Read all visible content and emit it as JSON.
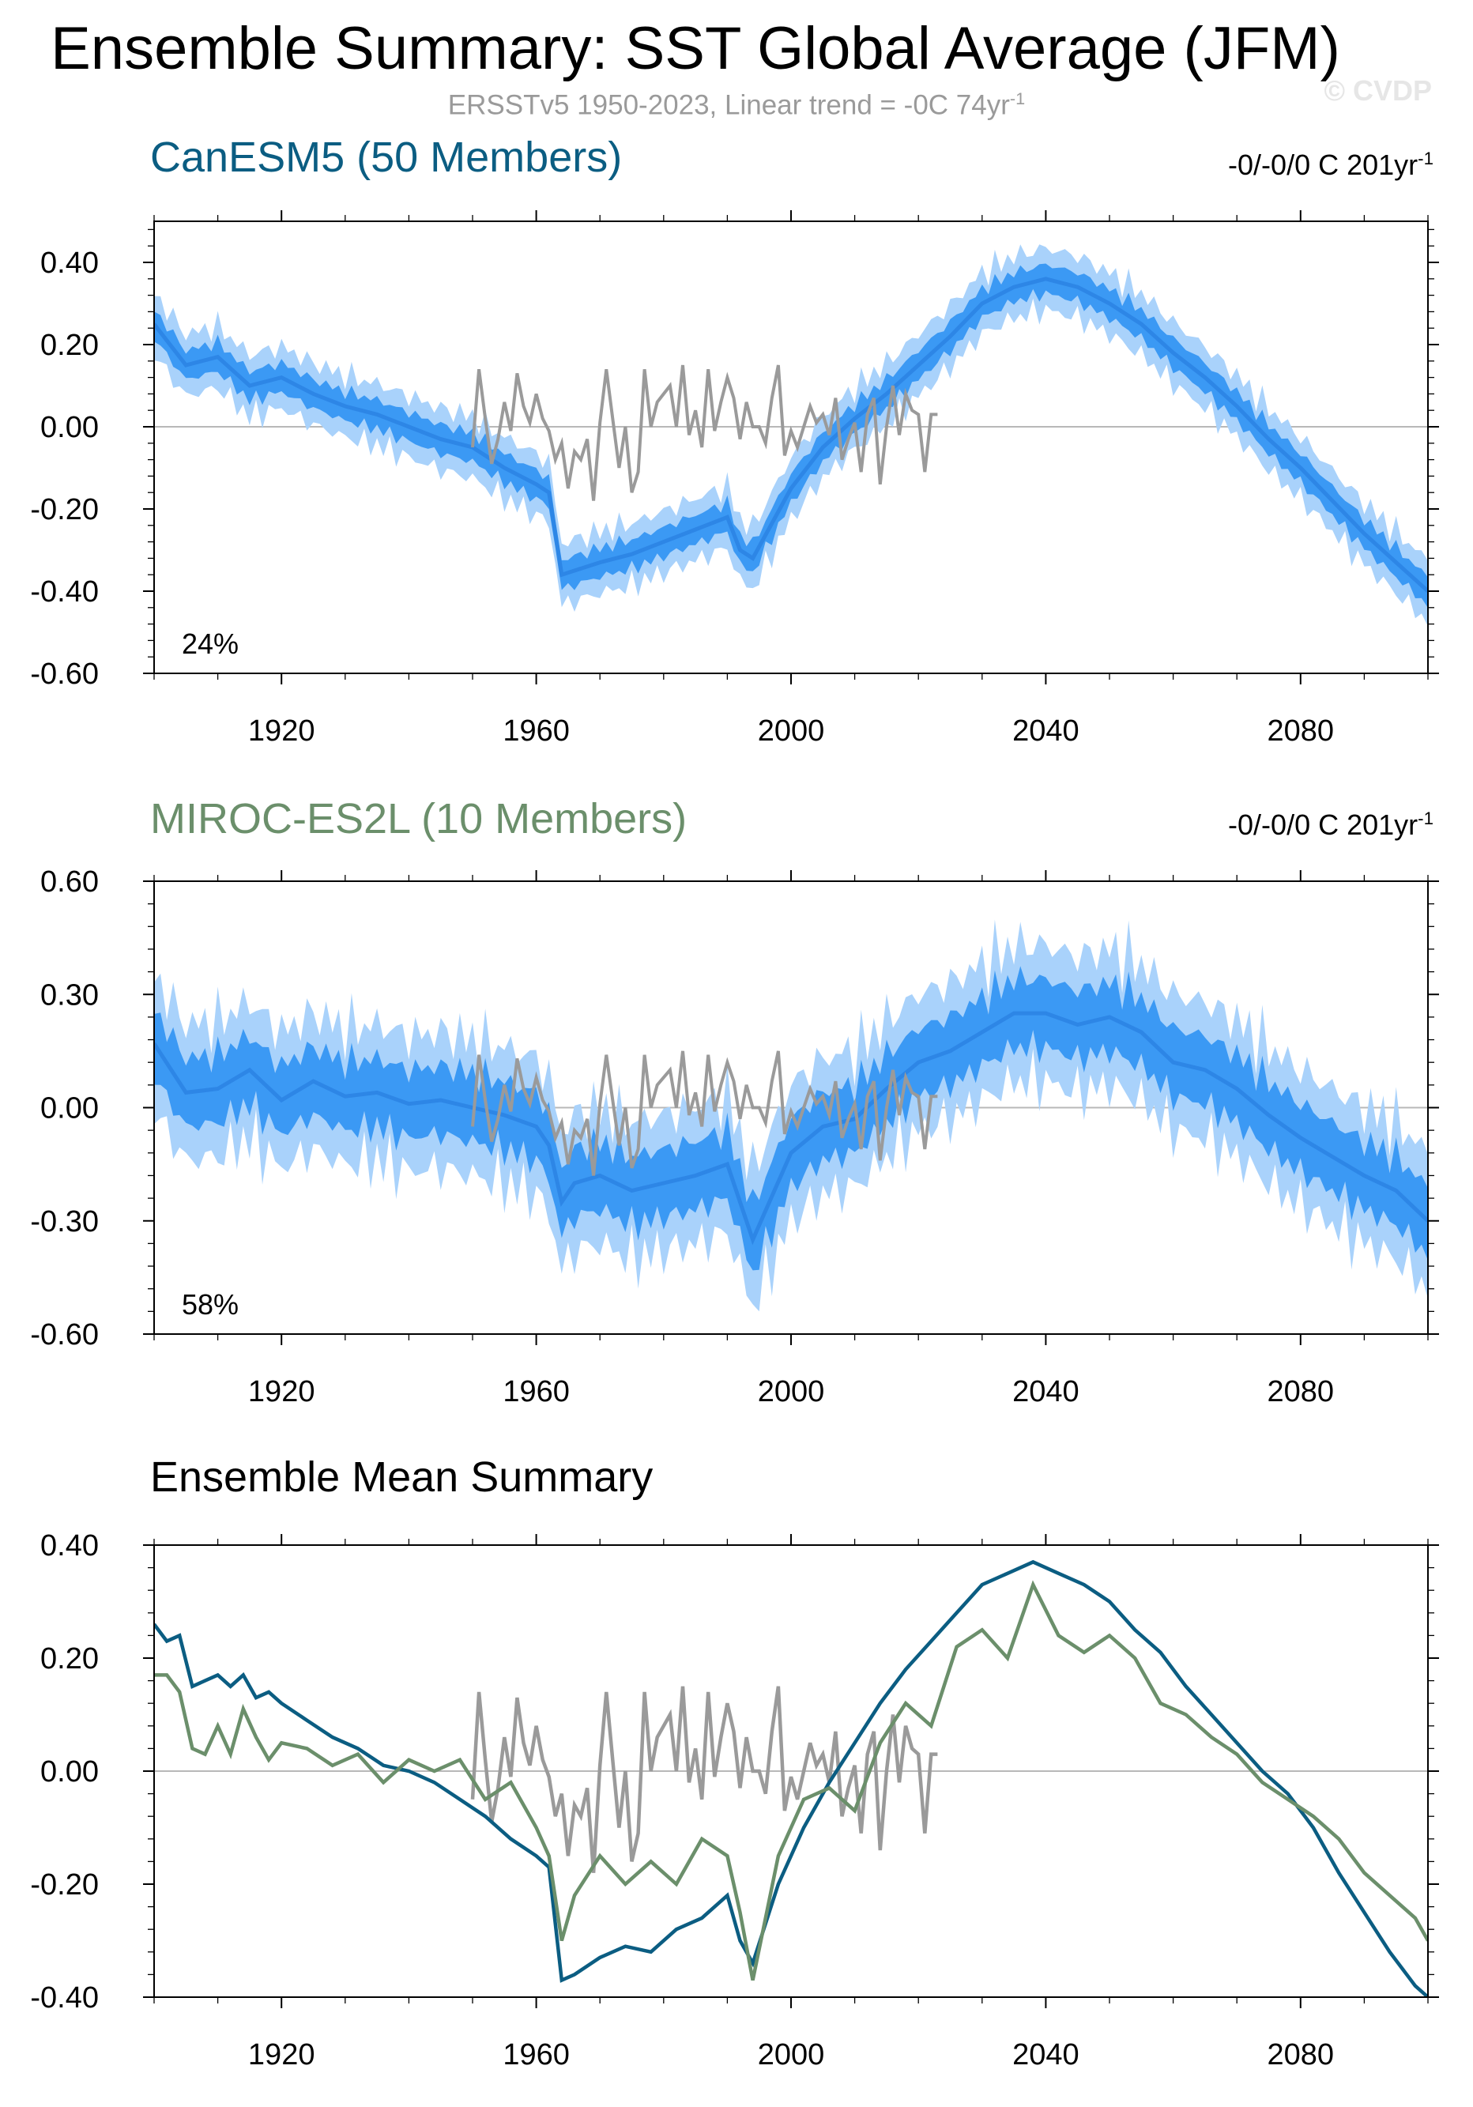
{
  "title": "Ensemble Summary: SST Global Average (JFM)",
  "subtitle_text": "ERSSTv5 1950-2023, Linear trend = -0C 74yr",
  "subtitle_exp": "-1",
  "copyright": "© CVDP",
  "colors": {
    "canesm": "#0b5d82",
    "miroc": "#6b8f6b",
    "obs": "#9a9a9a",
    "band_inner": "#3b99f4",
    "band_outer": "#a9d2fb",
    "ens_mean_line": "#2d86e6"
  },
  "chart_data": [
    {
      "type": "area",
      "title": "CanESM5 (50 Members)",
      "trend_text": "-0/-0/0 C 201yr",
      "trend_exp": "-1",
      "percent_label": "24%",
      "xlim": [
        1900,
        2100
      ],
      "ylim": [
        -0.6,
        0.5
      ],
      "yticks": [
        0.4,
        0.2,
        0.0,
        -0.2,
        -0.4,
        -0.6
      ],
      "ytick_labels": [
        "0.40",
        "0.20",
        "0.00",
        "-0.20",
        "-0.40",
        "-0.60"
      ],
      "xticks": [
        1920,
        1960,
        2000,
        2040,
        2080
      ],
      "inner_halfwidth": 0.035,
      "outer_halfwidth": 0.075,
      "ensemble_mean": {
        "x": [
          1900,
          1905,
          1910,
          1915,
          1920,
          1925,
          1930,
          1935,
          1940,
          1945,
          1950,
          1955,
          1960,
          1962,
          1964,
          1966,
          1970,
          1975,
          1980,
          1985,
          1990,
          1992,
          1994,
          2000,
          2005,
          2010,
          2015,
          2020,
          2025,
          2030,
          2035,
          2040,
          2045,
          2050,
          2055,
          2060,
          2065,
          2070,
          2075,
          2080,
          2085,
          2090,
          2095,
          2100
        ],
        "y": [
          0.25,
          0.15,
          0.17,
          0.1,
          0.12,
          0.08,
          0.05,
          0.03,
          0.0,
          -0.03,
          -0.05,
          -0.1,
          -0.14,
          -0.16,
          -0.36,
          -0.35,
          -0.33,
          -0.31,
          -0.28,
          -0.25,
          -0.22,
          -0.3,
          -0.32,
          -0.15,
          -0.05,
          0.02,
          0.08,
          0.15,
          0.22,
          0.3,
          0.34,
          0.36,
          0.34,
          0.3,
          0.25,
          0.18,
          0.12,
          0.05,
          -0.03,
          -0.1,
          -0.18,
          -0.26,
          -0.33,
          -0.4
        ]
      },
      "observations": {
        "name": "ERSSTv5",
        "x": [
          1950,
          1951,
          1952,
          1953,
          1954,
          1955,
          1956,
          1957,
          1958,
          1959,
          1960,
          1961,
          1962,
          1963,
          1964,
          1965,
          1966,
          1967,
          1968,
          1969,
          1970,
          1971,
          1972,
          1973,
          1974,
          1975,
          1976,
          1977,
          1978,
          1979,
          1980,
          1981,
          1982,
          1983,
          1984,
          1985,
          1986,
          1987,
          1988,
          1989,
          1990,
          1991,
          1992,
          1993,
          1994,
          1995,
          1996,
          1997,
          1998,
          1999,
          2000,
          2001,
          2002,
          2003,
          2004,
          2005,
          2006,
          2007,
          2008,
          2009,
          2010,
          2011,
          2012,
          2013,
          2014,
          2015,
          2016,
          2017,
          2018,
          2019,
          2020,
          2021,
          2022,
          2023
        ],
        "y": [
          -0.05,
          0.14,
          0.02,
          -0.09,
          -0.03,
          0.06,
          -0.01,
          0.13,
          0.05,
          0.01,
          0.08,
          0.02,
          -0.01,
          -0.08,
          -0.04,
          -0.15,
          -0.06,
          -0.08,
          -0.03,
          -0.18,
          0.01,
          0.14,
          0.02,
          -0.1,
          0.0,
          -0.16,
          -0.11,
          0.14,
          0.0,
          0.06,
          0.08,
          0.1,
          0.0,
          0.15,
          -0.02,
          0.04,
          -0.05,
          0.14,
          -0.01,
          0.06,
          0.12,
          0.07,
          -0.03,
          0.06,
          0.0,
          0.0,
          -0.04,
          0.07,
          0.15,
          -0.07,
          -0.01,
          -0.05,
          0.0,
          0.05,
          0.01,
          0.03,
          -0.02,
          0.07,
          -0.08,
          -0.03,
          0.01,
          -0.11,
          0.03,
          0.07,
          -0.14,
          0.0,
          0.1,
          -0.02,
          0.08,
          0.04,
          0.03,
          -0.11,
          0.03,
          0.03
        ]
      }
    },
    {
      "type": "area",
      "title": "MIROC-ES2L (10 Members)",
      "trend_text": "-0/-0/0 C 201yr",
      "trend_exp": "-1",
      "percent_label": "58%",
      "xlim": [
        1900,
        2100
      ],
      "ylim": [
        -0.6,
        0.6
      ],
      "yticks": [
        0.6,
        0.3,
        0.0,
        -0.3,
        -0.6
      ],
      "ytick_labels": [
        "0.60",
        "0.30",
        "0.00",
        "-0.30",
        "-0.60"
      ],
      "xticks": [
        1920,
        1960,
        2000,
        2040,
        2080
      ],
      "inner_halfwidth": 0.09,
      "outer_halfwidth": 0.18,
      "ensemble_mean": {
        "x": [
          1900,
          1905,
          1910,
          1915,
          1920,
          1925,
          1930,
          1935,
          1940,
          1945,
          1950,
          1955,
          1960,
          1962,
          1964,
          1966,
          1970,
          1975,
          1980,
          1985,
          1990,
          1992,
          1994,
          2000,
          2005,
          2010,
          2015,
          2020,
          2025,
          2030,
          2035,
          2040,
          2045,
          2050,
          2055,
          2060,
          2065,
          2070,
          2075,
          2080,
          2085,
          2090,
          2095,
          2100
        ],
        "y": [
          0.17,
          0.04,
          0.05,
          0.1,
          0.02,
          0.07,
          0.03,
          0.04,
          0.01,
          0.02,
          0.0,
          -0.02,
          -0.05,
          -0.1,
          -0.25,
          -0.2,
          -0.18,
          -0.22,
          -0.2,
          -0.18,
          -0.15,
          -0.25,
          -0.35,
          -0.12,
          -0.05,
          -0.03,
          0.05,
          0.12,
          0.15,
          0.2,
          0.25,
          0.25,
          0.22,
          0.24,
          0.2,
          0.12,
          0.1,
          0.05,
          -0.02,
          -0.08,
          -0.13,
          -0.18,
          -0.22,
          -0.3
        ]
      },
      "observations": {
        "name": "ERSSTv5",
        "x": [
          1950,
          1951,
          1952,
          1953,
          1954,
          1955,
          1956,
          1957,
          1958,
          1959,
          1960,
          1961,
          1962,
          1963,
          1964,
          1965,
          1966,
          1967,
          1968,
          1969,
          1970,
          1971,
          1972,
          1973,
          1974,
          1975,
          1976,
          1977,
          1978,
          1979,
          1980,
          1981,
          1982,
          1983,
          1984,
          1985,
          1986,
          1987,
          1988,
          1989,
          1990,
          1991,
          1992,
          1993,
          1994,
          1995,
          1996,
          1997,
          1998,
          1999,
          2000,
          2001,
          2002,
          2003,
          2004,
          2005,
          2006,
          2007,
          2008,
          2009,
          2010,
          2011,
          2012,
          2013,
          2014,
          2015,
          2016,
          2017,
          2018,
          2019,
          2020,
          2021,
          2022,
          2023
        ],
        "y": [
          -0.05,
          0.14,
          0.02,
          -0.09,
          -0.03,
          0.06,
          -0.01,
          0.13,
          0.05,
          0.01,
          0.08,
          0.02,
          -0.01,
          -0.08,
          -0.04,
          -0.15,
          -0.06,
          -0.08,
          -0.03,
          -0.18,
          0.01,
          0.14,
          0.02,
          -0.1,
          0.0,
          -0.16,
          -0.11,
          0.14,
          0.0,
          0.06,
          0.08,
          0.1,
          0.0,
          0.15,
          -0.02,
          0.04,
          -0.05,
          0.14,
          -0.01,
          0.06,
          0.12,
          0.07,
          -0.03,
          0.06,
          0.0,
          0.0,
          -0.04,
          0.07,
          0.15,
          -0.07,
          -0.01,
          -0.05,
          0.0,
          0.05,
          0.01,
          0.03,
          -0.02,
          0.07,
          -0.08,
          -0.03,
          0.01,
          -0.11,
          0.03,
          0.07,
          -0.14,
          0.0,
          0.1,
          -0.02,
          0.08,
          0.04,
          0.03,
          -0.11,
          0.03,
          0.03
        ]
      }
    },
    {
      "type": "line",
      "title": "Ensemble Mean Summary",
      "xlim": [
        1900,
        2100
      ],
      "ylim": [
        -0.4,
        0.4
      ],
      "yticks": [
        0.4,
        0.2,
        0.0,
        -0.2,
        -0.4
      ],
      "ytick_labels": [
        "0.40",
        "0.20",
        "0.00",
        "-0.20",
        "-0.40"
      ],
      "xticks": [
        1920,
        1960,
        2000,
        2040,
        2080
      ],
      "series": [
        {
          "name": "CanESM5",
          "x": [
            1900,
            1902,
            1904,
            1906,
            1908,
            1910,
            1912,
            1914,
            1916,
            1918,
            1920,
            1924,
            1928,
            1932,
            1936,
            1940,
            1944,
            1948,
            1952,
            1956,
            1960,
            1962,
            1964,
            1966,
            1970,
            1974,
            1978,
            1982,
            1986,
            1990,
            1992,
            1994,
            1998,
            2002,
            2006,
            2010,
            2014,
            2018,
            2022,
            2026,
            2030,
            2034,
            2038,
            2042,
            2046,
            2050,
            2054,
            2058,
            2062,
            2066,
            2070,
            2074,
            2078,
            2082,
            2086,
            2090,
            2094,
            2098,
            2100
          ],
          "y": [
            0.26,
            0.23,
            0.24,
            0.15,
            0.16,
            0.17,
            0.15,
            0.17,
            0.13,
            0.14,
            0.12,
            0.09,
            0.06,
            0.04,
            0.01,
            0.0,
            -0.02,
            -0.05,
            -0.08,
            -0.12,
            -0.15,
            -0.17,
            -0.37,
            -0.36,
            -0.33,
            -0.31,
            -0.32,
            -0.28,
            -0.26,
            -0.22,
            -0.3,
            -0.34,
            -0.2,
            -0.1,
            -0.02,
            0.05,
            0.12,
            0.18,
            0.23,
            0.28,
            0.33,
            0.35,
            0.37,
            0.35,
            0.33,
            0.3,
            0.25,
            0.21,
            0.15,
            0.1,
            0.05,
            0.0,
            -0.04,
            -0.1,
            -0.18,
            -0.25,
            -0.32,
            -0.38,
            -0.4
          ]
        },
        {
          "name": "MIROC-ES2L",
          "x": [
            1900,
            1902,
            1904,
            1906,
            1908,
            1910,
            1912,
            1914,
            1916,
            1918,
            1920,
            1924,
            1928,
            1932,
            1936,
            1940,
            1944,
            1948,
            1952,
            1956,
            1960,
            1962,
            1964,
            1966,
            1970,
            1974,
            1978,
            1982,
            1986,
            1990,
            1992,
            1994,
            1998,
            2002,
            2006,
            2010,
            2014,
            2018,
            2022,
            2026,
            2030,
            2034,
            2038,
            2042,
            2046,
            2050,
            2054,
            2058,
            2062,
            2066,
            2070,
            2074,
            2078,
            2082,
            2086,
            2090,
            2094,
            2098,
            2100
          ],
          "y": [
            0.17,
            0.17,
            0.14,
            0.04,
            0.03,
            0.08,
            0.03,
            0.11,
            0.06,
            0.02,
            0.05,
            0.04,
            0.01,
            0.03,
            -0.02,
            0.02,
            0.0,
            0.02,
            -0.05,
            -0.02,
            -0.1,
            -0.15,
            -0.3,
            -0.22,
            -0.15,
            -0.2,
            -0.16,
            -0.2,
            -0.12,
            -0.15,
            -0.25,
            -0.37,
            -0.15,
            -0.05,
            -0.03,
            -0.07,
            0.05,
            0.12,
            0.08,
            0.22,
            0.25,
            0.2,
            0.33,
            0.24,
            0.21,
            0.24,
            0.2,
            0.12,
            0.1,
            0.06,
            0.03,
            -0.02,
            -0.05,
            -0.08,
            -0.12,
            -0.18,
            -0.22,
            -0.26,
            -0.3
          ]
        },
        {
          "name": "ERSSTv5",
          "x": [
            1950,
            1951,
            1952,
            1953,
            1954,
            1955,
            1956,
            1957,
            1958,
            1959,
            1960,
            1961,
            1962,
            1963,
            1964,
            1965,
            1966,
            1967,
            1968,
            1969,
            1970,
            1971,
            1972,
            1973,
            1974,
            1975,
            1976,
            1977,
            1978,
            1979,
            1980,
            1981,
            1982,
            1983,
            1984,
            1985,
            1986,
            1987,
            1988,
            1989,
            1990,
            1991,
            1992,
            1993,
            1994,
            1995,
            1996,
            1997,
            1998,
            1999,
            2000,
            2001,
            2002,
            2003,
            2004,
            2005,
            2006,
            2007,
            2008,
            2009,
            2010,
            2011,
            2012,
            2013,
            2014,
            2015,
            2016,
            2017,
            2018,
            2019,
            2020,
            2021,
            2022,
            2023
          ],
          "y": [
            -0.05,
            0.14,
            0.02,
            -0.09,
            -0.03,
            0.06,
            -0.01,
            0.13,
            0.05,
            0.01,
            0.08,
            0.02,
            -0.01,
            -0.08,
            -0.04,
            -0.15,
            -0.06,
            -0.08,
            -0.03,
            -0.18,
            0.01,
            0.14,
            0.02,
            -0.1,
            0.0,
            -0.16,
            -0.11,
            0.14,
            0.0,
            0.06,
            0.08,
            0.1,
            0.0,
            0.15,
            -0.02,
            0.04,
            -0.05,
            0.14,
            -0.01,
            0.06,
            0.12,
            0.07,
            -0.03,
            0.06,
            0.0,
            0.0,
            -0.04,
            0.07,
            0.15,
            -0.07,
            -0.01,
            -0.05,
            0.0,
            0.05,
            0.01,
            0.03,
            -0.02,
            0.07,
            -0.08,
            -0.03,
            0.01,
            -0.11,
            0.03,
            0.07,
            -0.14,
            0.0,
            0.1,
            -0.02,
            0.08,
            0.04,
            0.03,
            -0.11,
            0.03,
            0.03
          ]
        }
      ]
    }
  ]
}
